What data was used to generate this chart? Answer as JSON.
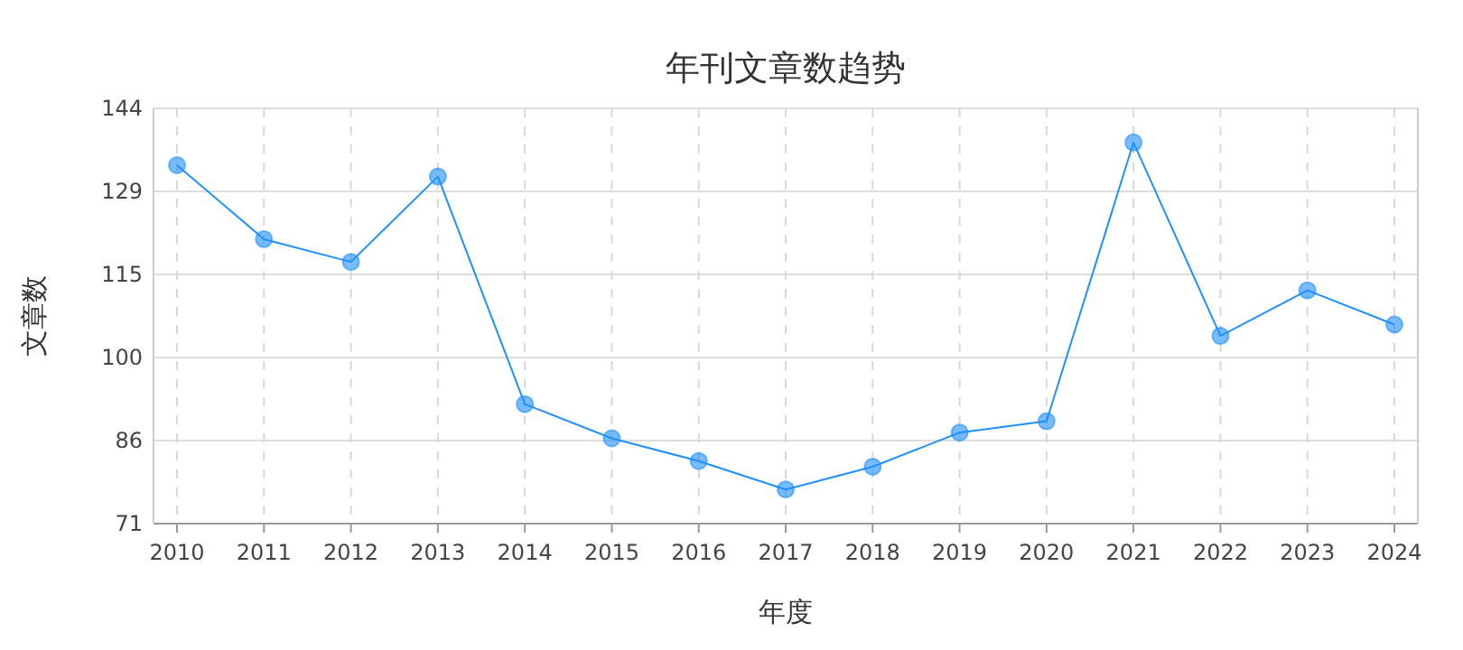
{
  "chart_data": {
    "type": "line",
    "title": "年刊文章数趋势",
    "xlabel": "年度",
    "ylabel": "文章数",
    "categories": [
      "2010",
      "2011",
      "2012",
      "2013",
      "2014",
      "2015",
      "2016",
      "2017",
      "2018",
      "2019",
      "2020",
      "2021",
      "2022",
      "2023",
      "2024"
    ],
    "series": [
      {
        "color": "#1e90ff",
        "values": [
          134,
          121,
          117,
          132,
          92,
          86,
          82,
          77,
          81,
          87,
          89,
          138,
          104,
          112,
          106
        ]
      }
    ],
    "ylim": [
      71,
      144
    ],
    "yticks": [
      71,
      {
        "value": 85.6,
        "label": "86"
      },
      {
        "value": 100.2,
        "label": "100"
      },
      {
        "value": 114.8,
        "label": "115"
      },
      {
        "value": 129.4,
        "label": "129"
      },
      144
    ],
    "grid": true,
    "marker": "circle",
    "line_style": "solid"
  }
}
